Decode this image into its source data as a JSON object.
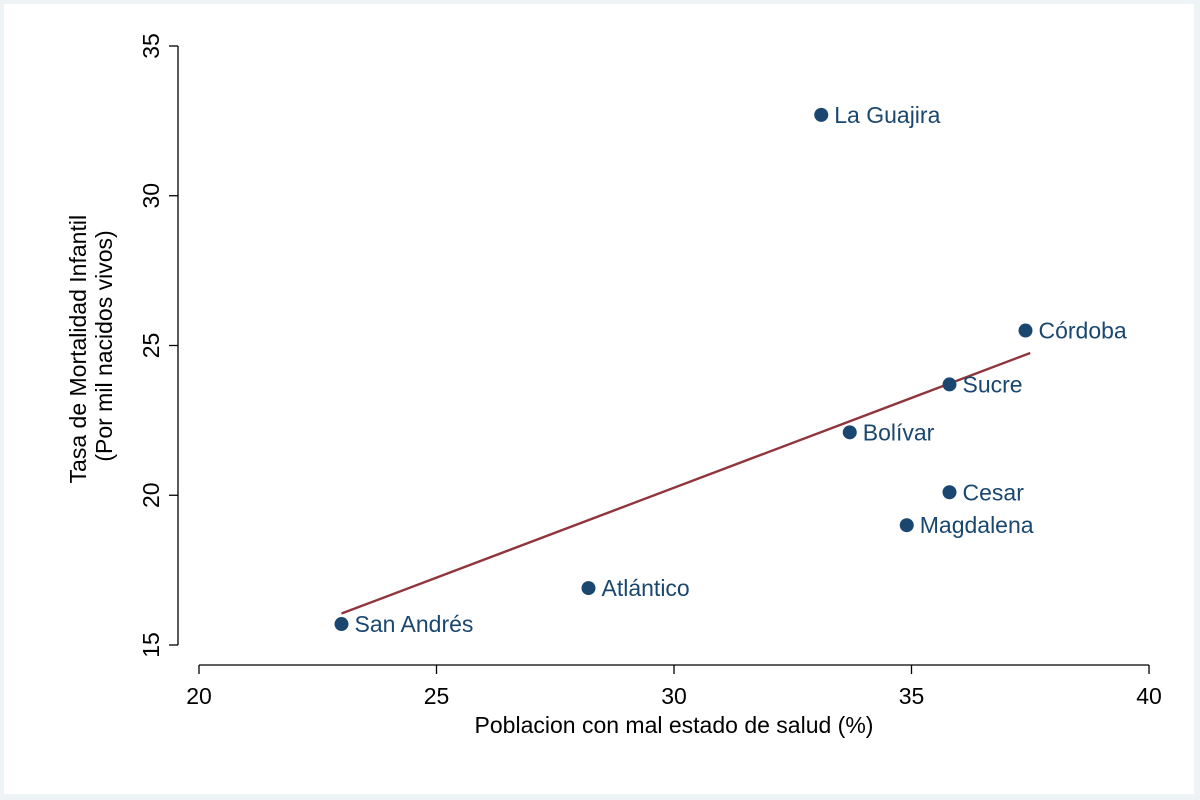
{
  "chart_data": {
    "type": "scatter",
    "xlabel": "Poblacion con mal estado de salud (%)",
    "ylabel": [
      "Tasa de Mortalidad Infantil",
      "(Por mil nacidos vivos)"
    ],
    "xlim": [
      20,
      40
    ],
    "ylim": [
      15,
      35
    ],
    "xticks": [
      20,
      25,
      30,
      35,
      40
    ],
    "yticks": [
      15,
      20,
      25,
      30,
      35
    ],
    "grid": false,
    "points": [
      {
        "label": "La Guajira",
        "x": 33.1,
        "y": 32.7
      },
      {
        "label": "Córdoba",
        "x": 37.4,
        "y": 25.5
      },
      {
        "label": "Sucre",
        "x": 35.8,
        "y": 23.7
      },
      {
        "label": "Bolívar",
        "x": 33.7,
        "y": 22.1
      },
      {
        "label": "Cesar",
        "x": 35.8,
        "y": 20.1
      },
      {
        "label": "Magdalena",
        "x": 34.9,
        "y": 19.0
      },
      {
        "label": "Atlántico",
        "x": 28.2,
        "y": 16.9
      },
      {
        "label": "San Andrés",
        "x": 23.0,
        "y": 15.7
      }
    ],
    "fit_line": {
      "x": [
        23.0,
        37.5
      ],
      "y": [
        16.05,
        24.75
      ]
    },
    "colors": {
      "marker": "#1a476f",
      "label": "#1a476f",
      "fit": "#90353b"
    }
  }
}
